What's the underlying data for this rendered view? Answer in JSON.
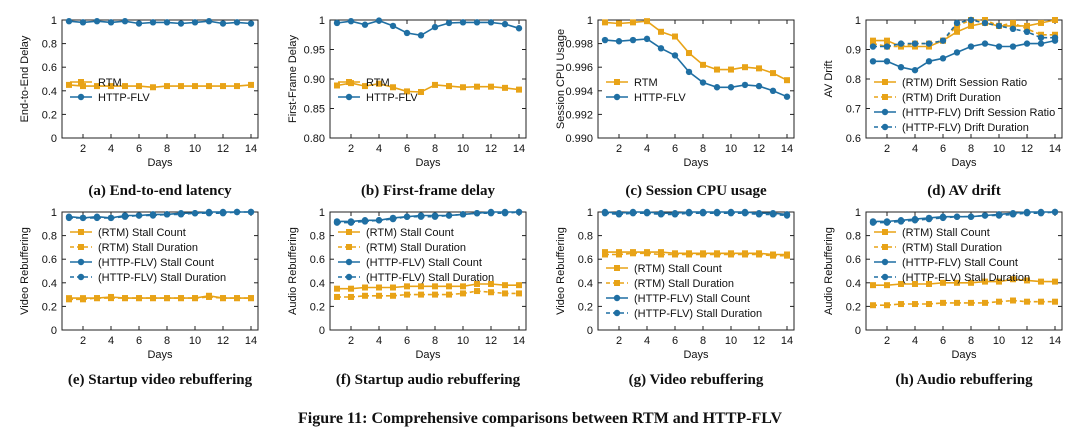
{
  "figure_caption": "Figure 11: Comprehensive comparisons between RTM and HTTP-FLV",
  "colors": {
    "rtm": "#E8A317",
    "flv": "#1F6FA3"
  },
  "chart_data": [
    {
      "type": "line",
      "caption": "(a) End-to-end latency",
      "title": "",
      "xlabel": "Days",
      "ylabel": "End-to-End Delay",
      "ylim": [
        0,
        1
      ],
      "yticks": [
        "0",
        "0.2",
        "0.4",
        "0.6",
        "0.8",
        "1"
      ],
      "yticks_num": [
        0,
        0.2,
        0.4,
        0.6,
        0.8,
        1
      ],
      "xlim": [
        0.5,
        14.5
      ],
      "xticks": [
        2,
        4,
        6,
        8,
        10,
        12,
        14
      ],
      "legend_position": "center-left",
      "x": [
        1,
        2,
        3,
        4,
        5,
        6,
        7,
        8,
        9,
        10,
        11,
        12,
        13,
        14
      ],
      "series": [
        {
          "name": "RTM",
          "label": "RTM",
          "color": "#E8A317",
          "marker": "square",
          "dash": false,
          "values": [
            0.45,
            0.44,
            0.44,
            0.44,
            0.44,
            0.44,
            0.43,
            0.44,
            0.44,
            0.44,
            0.44,
            0.44,
            0.44,
            0.45
          ]
        },
        {
          "name": "HTTP-FLV",
          "label": "HTTP-FLV",
          "color": "#1F6FA3",
          "marker": "circle",
          "dash": false,
          "values": [
            0.99,
            0.98,
            0.99,
            0.98,
            0.99,
            0.97,
            0.98,
            0.98,
            0.97,
            0.98,
            0.99,
            0.97,
            0.98,
            0.97
          ]
        }
      ]
    },
    {
      "type": "line",
      "caption": "(b) First-frame delay",
      "title": "",
      "xlabel": "Days",
      "ylabel": "First-Frame Delay",
      "ylim": [
        0.8,
        1
      ],
      "yticks": [
        "0.80",
        "0.85",
        "0.90",
        "0.95",
        "1"
      ],
      "yticks_num": [
        0.8,
        0.85,
        0.9,
        0.95,
        1
      ],
      "xlim": [
        0.5,
        14.5
      ],
      "xticks": [
        2,
        4,
        6,
        8,
        10,
        12,
        14
      ],
      "legend_position": "center-left",
      "x": [
        1,
        2,
        3,
        4,
        5,
        6,
        7,
        8,
        9,
        10,
        11,
        12,
        13,
        14
      ],
      "series": [
        {
          "name": "RTM",
          "label": "RTM",
          "color": "#E8A317",
          "marker": "square",
          "dash": false,
          "values": [
            0.889,
            0.893,
            0.888,
            0.892,
            0.886,
            0.879,
            0.878,
            0.89,
            0.888,
            0.886,
            0.887,
            0.887,
            0.885,
            0.882
          ]
        },
        {
          "name": "HTTP-FLV",
          "label": "HTTP-FLV",
          "color": "#1F6FA3",
          "marker": "circle",
          "dash": false,
          "values": [
            0.995,
            0.998,
            0.992,
            0.999,
            0.99,
            0.978,
            0.974,
            0.988,
            0.995,
            0.996,
            0.996,
            0.996,
            0.993,
            0.986
          ]
        }
      ]
    },
    {
      "type": "line",
      "caption": "(c) Session CPU usage",
      "title": "",
      "xlabel": "Days",
      "ylabel": "Session CPU Usage",
      "ylim": [
        0.99,
        1
      ],
      "yticks": [
        "0.990",
        "0.992",
        "0.994",
        "0.996",
        "0.998",
        "1"
      ],
      "yticks_num": [
        0.99,
        0.992,
        0.994,
        0.996,
        0.998,
        1
      ],
      "xlim": [
        0.5,
        14.5
      ],
      "xticks": [
        2,
        4,
        6,
        8,
        10,
        12,
        14
      ],
      "legend_position": "center-left",
      "x": [
        1,
        2,
        3,
        4,
        5,
        6,
        7,
        8,
        9,
        10,
        11,
        12,
        13,
        14
      ],
      "series": [
        {
          "name": "RTM",
          "label": "RTM",
          "color": "#E8A317",
          "marker": "square",
          "dash": false,
          "values": [
            0.9998,
            0.9997,
            0.9998,
            0.9999,
            0.999,
            0.9986,
            0.9972,
            0.9962,
            0.9958,
            0.9958,
            0.996,
            0.9959,
            0.9955,
            0.9949
          ]
        },
        {
          "name": "HTTP-FLV",
          "label": "HTTP-FLV",
          "color": "#1F6FA3",
          "marker": "circle",
          "dash": false,
          "values": [
            0.9983,
            0.9982,
            0.9983,
            0.9984,
            0.9976,
            0.997,
            0.9956,
            0.9947,
            0.9943,
            0.9943,
            0.9945,
            0.9944,
            0.994,
            0.9935
          ]
        }
      ]
    },
    {
      "type": "line",
      "caption": "(d) AV drift",
      "title": "",
      "xlabel": "Days",
      "ylabel": "AV Drift",
      "ylim": [
        0.6,
        1
      ],
      "yticks": [
        "0.6",
        "0.7",
        "0.8",
        "0.9",
        "1"
      ],
      "yticks_num": [
        0.6,
        0.7,
        0.8,
        0.9,
        1
      ],
      "xlim": [
        0.5,
        14.5
      ],
      "xticks": [
        2,
        4,
        6,
        8,
        10,
        12,
        14
      ],
      "legend_position": "center-left",
      "x": [
        1,
        2,
        3,
        4,
        5,
        6,
        7,
        8,
        9,
        10,
        11,
        12,
        13,
        14
      ],
      "series": [
        {
          "name": "(RTM) Drift Session Ratio",
          "label": "(RTM) Drift Session Ratio",
          "color": "#E8A317",
          "marker": "square",
          "dash": false,
          "values": [
            0.93,
            0.93,
            0.91,
            0.91,
            0.91,
            0.93,
            0.96,
            0.98,
            0.99,
            0.98,
            0.98,
            0.98,
            0.99,
            1.0
          ]
        },
        {
          "name": "(RTM) Drift Duration",
          "label": "(RTM) Drift Duration",
          "color": "#E8A317",
          "marker": "square",
          "dash": true,
          "values": [
            0.92,
            0.91,
            0.91,
            0.92,
            0.92,
            0.93,
            0.98,
            1.0,
            1.0,
            0.98,
            0.99,
            0.97,
            0.95,
            0.95
          ]
        },
        {
          "name": "(HTTP-FLV) Drift Session Ratio",
          "label": "(HTTP-FLV) Drift Session Ratio",
          "color": "#1F6FA3",
          "marker": "circle",
          "dash": false,
          "values": [
            0.86,
            0.86,
            0.84,
            0.83,
            0.86,
            0.87,
            0.89,
            0.91,
            0.92,
            0.91,
            0.91,
            0.92,
            0.92,
            0.93
          ]
        },
        {
          "name": "(HTTP-FLV) Drift Duration",
          "label": "(HTTP-FLV) Drift Duration",
          "color": "#1F6FA3",
          "marker": "circle",
          "dash": true,
          "values": [
            0.91,
            0.91,
            0.92,
            0.92,
            0.92,
            0.93,
            0.99,
            1.0,
            0.99,
            0.98,
            0.97,
            0.96,
            0.94,
            0.94
          ]
        }
      ]
    },
    {
      "type": "line",
      "caption": "(e) Startup video rebuffering",
      "title": "",
      "xlabel": "Days",
      "ylabel": "Video Rebuffering",
      "ylim": [
        0,
        1
      ],
      "yticks": [
        "0",
        "0.2",
        "0.4",
        "0.6",
        "0.8",
        "1"
      ],
      "yticks_num": [
        0,
        0.2,
        0.4,
        0.6,
        0.8,
        1
      ],
      "xlim": [
        0.5,
        14.5
      ],
      "xticks": [
        2,
        4,
        6,
        8,
        10,
        12,
        14
      ],
      "legend_position": "center-left",
      "x": [
        1,
        2,
        3,
        4,
        5,
        6,
        7,
        8,
        9,
        10,
        11,
        12,
        13,
        14
      ],
      "series": [
        {
          "name": "(RTM) Stall Count",
          "label": "(RTM) Stall Count",
          "color": "#E8A317",
          "marker": "square",
          "dash": false,
          "values": [
            0.27,
            0.27,
            0.27,
            0.28,
            0.27,
            0.27,
            0.27,
            0.27,
            0.27,
            0.27,
            0.29,
            0.27,
            0.27,
            0.27
          ]
        },
        {
          "name": "(RTM) Stall Duration",
          "label": "(RTM) Stall Duration",
          "color": "#E8A317",
          "marker": "square",
          "dash": true,
          "values": [
            0.26,
            0.26,
            0.27,
            0.27,
            0.27,
            0.27,
            0.27,
            0.27,
            0.27,
            0.27,
            0.28,
            0.27,
            0.27,
            0.27
          ]
        },
        {
          "name": "(HTTP-FLV) Stall Count",
          "label": "(HTTP-FLV) Stall Count",
          "color": "#1F6FA3",
          "marker": "circle",
          "dash": false,
          "values": [
            0.96,
            0.95,
            0.96,
            0.95,
            0.97,
            0.97,
            0.98,
            0.98,
            0.99,
            0.99,
            1.0,
            1.0,
            1.0,
            1.0
          ]
        },
        {
          "name": "(HTTP-FLV) Stall Duration",
          "label": "(HTTP-FLV) Stall Duration",
          "color": "#1F6FA3",
          "marker": "circle",
          "dash": true,
          "values": [
            0.95,
            0.95,
            0.95,
            0.95,
            0.96,
            0.97,
            0.97,
            0.98,
            0.98,
            0.99,
            0.99,
            0.99,
            1.0,
            1.0
          ]
        }
      ]
    },
    {
      "type": "line",
      "caption": "(f) Startup audio rebuffering",
      "title": "",
      "xlabel": "Days",
      "ylabel": "Audio Rebuffering",
      "ylim": [
        0,
        1
      ],
      "yticks": [
        "0",
        "0.2",
        "0.4",
        "0.6",
        "0.8",
        "1"
      ],
      "yticks_num": [
        0,
        0.2,
        0.4,
        0.6,
        0.8,
        1
      ],
      "xlim": [
        0.5,
        14.5
      ],
      "xticks": [
        2,
        4,
        6,
        8,
        10,
        12,
        14
      ],
      "legend_position": "center-left",
      "x": [
        1,
        2,
        3,
        4,
        5,
        6,
        7,
        8,
        9,
        10,
        11,
        12,
        13,
        14
      ],
      "series": [
        {
          "name": "(RTM) Stall Count",
          "label": "(RTM) Stall Count",
          "color": "#E8A317",
          "marker": "square",
          "dash": false,
          "values": [
            0.35,
            0.35,
            0.36,
            0.36,
            0.36,
            0.37,
            0.37,
            0.37,
            0.37,
            0.37,
            0.39,
            0.39,
            0.38,
            0.38
          ]
        },
        {
          "name": "(RTM) Stall Duration",
          "label": "(RTM) Stall Duration",
          "color": "#E8A317",
          "marker": "square",
          "dash": true,
          "values": [
            0.28,
            0.28,
            0.29,
            0.29,
            0.29,
            0.3,
            0.3,
            0.3,
            0.3,
            0.31,
            0.33,
            0.32,
            0.31,
            0.31
          ]
        },
        {
          "name": "(HTTP-FLV) Stall Count",
          "label": "(HTTP-FLV) Stall Count",
          "color": "#1F6FA3",
          "marker": "circle",
          "dash": false,
          "values": [
            0.92,
            0.92,
            0.93,
            0.93,
            0.95,
            0.96,
            0.97,
            0.97,
            0.97,
            0.98,
            0.99,
            1.0,
            1.0,
            1.0
          ]
        },
        {
          "name": "(HTTP-FLV) Stall Duration",
          "label": "(HTTP-FLV) Stall Duration",
          "color": "#1F6FA3",
          "marker": "circle",
          "dash": true,
          "values": [
            0.91,
            0.91,
            0.92,
            0.93,
            0.94,
            0.96,
            0.96,
            0.96,
            0.97,
            0.98,
            0.99,
            0.99,
            0.99,
            1.0
          ]
        }
      ]
    },
    {
      "type": "line",
      "caption": "(g) Video rebuffering",
      "title": "",
      "xlabel": "Days",
      "ylabel": "Video Rebuffering",
      "ylim": [
        0,
        1
      ],
      "yticks": [
        "0",
        "0.2",
        "0.4",
        "0.6",
        "0.8",
        "1"
      ],
      "yticks_num": [
        0,
        0.2,
        0.4,
        0.6,
        0.8,
        1
      ],
      "xlim": [
        0.5,
        14.5
      ],
      "xticks": [
        2,
        4,
        6,
        8,
        10,
        12,
        14
      ],
      "legend_position": "center-left",
      "x": [
        1,
        2,
        3,
        4,
        5,
        6,
        7,
        8,
        9,
        10,
        11,
        12,
        13,
        14
      ],
      "series": [
        {
          "name": "(RTM) Stall Count",
          "label": "(RTM) Stall Count",
          "color": "#E8A317",
          "marker": "square",
          "dash": false,
          "values": [
            0.66,
            0.66,
            0.66,
            0.66,
            0.66,
            0.65,
            0.65,
            0.65,
            0.65,
            0.65,
            0.65,
            0.65,
            0.64,
            0.64
          ]
        },
        {
          "name": "(RTM) Stall Duration",
          "label": "(RTM) Stall Duration",
          "color": "#E8A317",
          "marker": "square",
          "dash": true,
          "values": [
            0.64,
            0.64,
            0.65,
            0.65,
            0.64,
            0.64,
            0.64,
            0.64,
            0.64,
            0.64,
            0.64,
            0.64,
            0.63,
            0.63
          ]
        },
        {
          "name": "(HTTP-FLV) Stall Count",
          "label": "(HTTP-FLV) Stall Count",
          "color": "#1F6FA3",
          "marker": "circle",
          "dash": false,
          "values": [
            1.0,
            0.99,
            1.0,
            1.0,
            0.99,
            0.99,
            1.0,
            1.0,
            1.0,
            1.0,
            1.0,
            0.99,
            0.99,
            0.98
          ]
        },
        {
          "name": "(HTTP-FLV) Stall Duration",
          "label": "(HTTP-FLV) Stall Duration",
          "color": "#1F6FA3",
          "marker": "circle",
          "dash": true,
          "values": [
            0.99,
            0.98,
            0.99,
            0.99,
            0.98,
            0.98,
            0.99,
            0.99,
            0.99,
            0.99,
            0.99,
            0.98,
            0.98,
            0.97
          ]
        }
      ]
    },
    {
      "type": "line",
      "caption": "(h) Audio rebuffering",
      "title": "",
      "xlabel": "Days",
      "ylabel": "Audio Rebuffering",
      "ylim": [
        0,
        1
      ],
      "yticks": [
        "0",
        "0.2",
        "0.4",
        "0.6",
        "0.8",
        "1"
      ],
      "yticks_num": [
        0,
        0.2,
        0.4,
        0.6,
        0.8,
        1
      ],
      "xlim": [
        0.5,
        14.5
      ],
      "xticks": [
        2,
        4,
        6,
        8,
        10,
        12,
        14
      ],
      "legend_position": "center-left",
      "x": [
        1,
        2,
        3,
        4,
        5,
        6,
        7,
        8,
        9,
        10,
        11,
        12,
        13,
        14
      ],
      "series": [
        {
          "name": "(RTM) Stall Count",
          "label": "(RTM) Stall Count",
          "color": "#E8A317",
          "marker": "square",
          "dash": false,
          "values": [
            0.38,
            0.38,
            0.39,
            0.39,
            0.39,
            0.4,
            0.4,
            0.4,
            0.41,
            0.41,
            0.43,
            0.42,
            0.41,
            0.41
          ]
        },
        {
          "name": "(RTM) Stall Duration",
          "label": "(RTM) Stall Duration",
          "color": "#E8A317",
          "marker": "square",
          "dash": true,
          "values": [
            0.21,
            0.21,
            0.22,
            0.22,
            0.22,
            0.23,
            0.23,
            0.23,
            0.23,
            0.24,
            0.25,
            0.24,
            0.24,
            0.24
          ]
        },
        {
          "name": "(HTTP-FLV) Stall Count",
          "label": "(HTTP-FLV) Stall Count",
          "color": "#1F6FA3",
          "marker": "circle",
          "dash": false,
          "values": [
            0.92,
            0.92,
            0.93,
            0.94,
            0.95,
            0.96,
            0.96,
            0.96,
            0.97,
            0.98,
            0.99,
            1.0,
            1.0,
            1.0
          ]
        },
        {
          "name": "(HTTP-FLV) Stall Duration",
          "label": "(HTTP-FLV) Stall Duration",
          "color": "#1F6FA3",
          "marker": "circle",
          "dash": true,
          "values": [
            0.91,
            0.91,
            0.92,
            0.93,
            0.94,
            0.95,
            0.96,
            0.96,
            0.97,
            0.97,
            0.98,
            0.99,
            0.99,
            1.0
          ]
        }
      ]
    }
  ]
}
